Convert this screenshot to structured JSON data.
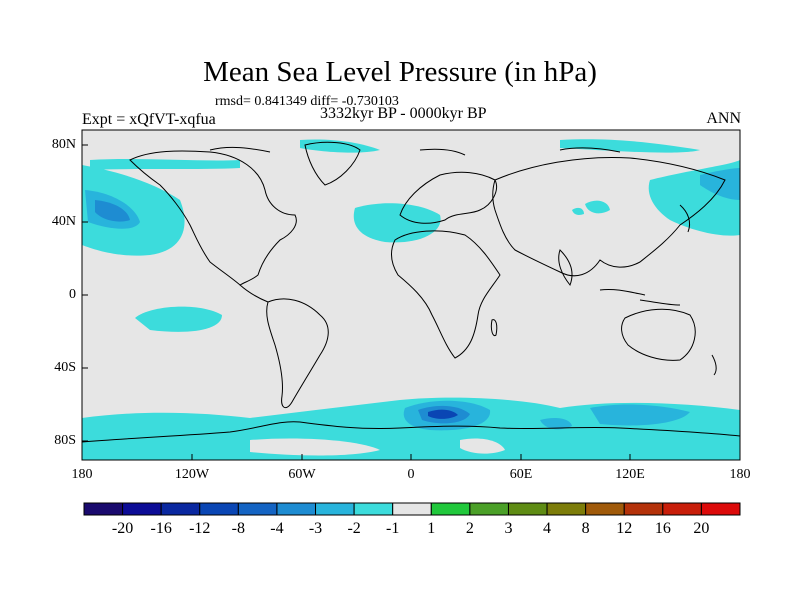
{
  "title": "Mean Sea Level Pressure (in hPa)",
  "stats": "rmsd= 0.841349 diff= -0.730103",
  "experiment": "Expt = xQfVT-xqfua",
  "period": "3332kyr BP - 0000kyr BP",
  "season": "ANN",
  "lat_labels": [
    "80N",
    "40N",
    "0",
    "40S",
    "80S"
  ],
  "lon_labels": [
    "180",
    "120W",
    "60W",
    "0",
    "60E",
    "120E",
    "180"
  ],
  "colorbar": {
    "labels": [
      "-20",
      "-16",
      "-12",
      "-8",
      "-4",
      "-3",
      "-2",
      "-1",
      "1",
      "2",
      "3",
      "4",
      "8",
      "12",
      "16",
      "20"
    ],
    "colors": [
      "#1a0a6e",
      "#0c0c96",
      "#0a28a0",
      "#0a46b4",
      "#1464c3",
      "#1e8cd2",
      "#28b4dc",
      "#3cdcdc",
      "#e6e6e6",
      "#21c83c",
      "#4ba028",
      "#5f8c14",
      "#7d7d0a",
      "#a05a0a",
      "#b4320a",
      "#c81e0a",
      "#dc0a0a"
    ]
  },
  "colors": {
    "background_field": "#e6e6e6",
    "anomaly_light": "#3cdcdc",
    "anomaly_mid": "#28b4dc",
    "anomaly_dark": "#1e8cd2",
    "coastline": "#000000"
  }
}
